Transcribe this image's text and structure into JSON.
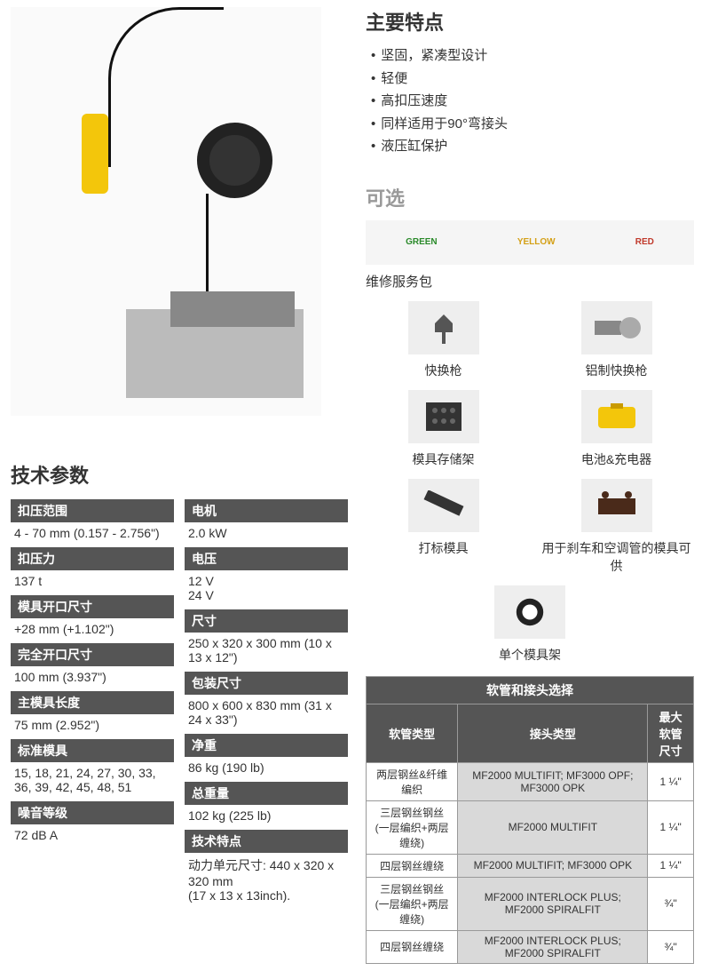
{
  "features": {
    "title": "主要特点",
    "items": [
      "坚固，紧凑型设计",
      "轻便",
      "高扣压速度",
      "同样适用于90°弯接头",
      "液压缸保护"
    ]
  },
  "optional": {
    "title": "可选",
    "pack_labels": {
      "green": "GREEN",
      "yellow": "YELLOW",
      "red": "RED"
    },
    "service_pack": "维修服务包",
    "items": [
      "快换枪",
      "铝制快换枪",
      "模具存储架",
      "电池&充电器",
      "打标模具",
      "用于刹车和空调管的模具可供"
    ],
    "single": "单个模具架"
  },
  "specs": {
    "title": "技术参数",
    "left": [
      {
        "label": "扣压范围",
        "value": "4 - 70 mm (0.157 - 2.756\")"
      },
      {
        "label": "扣压力",
        "value": "137 t"
      },
      {
        "label": "模具开口尺寸",
        "value": "+28 mm (+1.102\")"
      },
      {
        "label": "完全开口尺寸",
        "value": "100 mm (3.937\")"
      },
      {
        "label": "主模具长度",
        "value": "75 mm (2.952\")"
      },
      {
        "label": "标准模具",
        "value": "15, 18, 21, 24, 27, 30, 33, 36, 39, 42, 45, 48, 51"
      },
      {
        "label": "噪音等级",
        "value": "72 dB A"
      }
    ],
    "right": [
      {
        "label": "电机",
        "value": "2.0 kW"
      },
      {
        "label": "电压",
        "value": "12 V\n24 V"
      },
      {
        "label": "尺寸",
        "value": "250 x 320 x 300 mm (10 x 13 x 12\")"
      },
      {
        "label": "包装尺寸",
        "value": "800 x 600 x 830 mm (31 x 24 x 33\")"
      },
      {
        "label": "净重",
        "value": "86 kg (190 lb)"
      },
      {
        "label": "总重量",
        "value": "102 kg (225 lb)"
      },
      {
        "label": "技术特点",
        "value": "动力单元尺寸: 440 x 320 x 320 mm\n(17 x 13 x 13inch)."
      }
    ]
  },
  "compat": {
    "title": "软管和接头选择",
    "headers": {
      "hose": "软管类型",
      "fitting": "接头类型",
      "size": "最大软管尺寸"
    },
    "rows": [
      {
        "hose": "两层钢丝&纤维编织",
        "fitting": "MF2000 MULTIFIT; MF3000 OPF; MF3000 OPK",
        "size": "1 ¼\""
      },
      {
        "hose": "三层钢丝钢丝\n(一层编织+两层缠绕)",
        "fitting": "MF2000 MULTIFIT",
        "size": "1 ¼\""
      },
      {
        "hose": "四层钢丝缠绕",
        "fitting": "MF2000 MULTIFIT;  MF3000 OPK",
        "size": "1 ¼\""
      },
      {
        "hose": "三层钢丝钢丝\n(一层编织+两层缠绕)",
        "fitting": "MF2000 INTERLOCK PLUS; MF2000 SPIRALFIT",
        "size": "¾\""
      },
      {
        "hose": "四层钢丝缠绕",
        "fitting": "MF2000 INTERLOCK PLUS; MF2000 SPIRALFIT",
        "size": "¾\""
      }
    ]
  },
  "colors": {
    "header_bg": "#555555",
    "fit_bg": "#d9d9d9",
    "text": "#333333",
    "optional_title": "#999999"
  }
}
